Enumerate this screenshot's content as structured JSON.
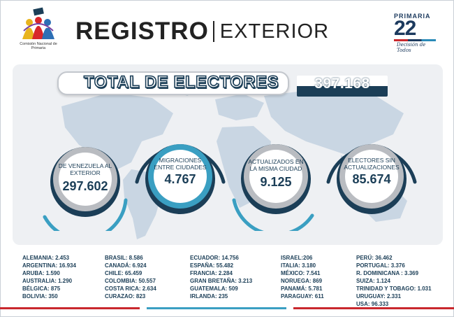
{
  "header": {
    "org_name": "Comisión Nacional de Primaria",
    "title_bold": "REGISTRO",
    "title_light": "EXTERIOR",
    "brand_top": "PRIMARIA",
    "brand_number": "22",
    "brand_tagline": "Decisión de Todos"
  },
  "total": {
    "label": "TOTAL DE ELECTORES",
    "value": "397.168"
  },
  "stats": [
    {
      "label": "DE VENEZUELA AL EXTERIOR",
      "value": "297.602"
    },
    {
      "label": "MIGRACIONES ENTRE CIUDADES",
      "value": "4.767"
    },
    {
      "label": "ACTUALIZADOS EN LA MISMA CIUDAD",
      "value": "9.125"
    },
    {
      "label": "ELECTORES SIN ACTUALIZACIONES",
      "value": "85.674"
    }
  ],
  "countries": [
    [
      "ALEMANIA: 2.453",
      "ARGENTINA: 16.934",
      "ARUBA: 1.590",
      "AUSTRALIA: 1.290",
      "BÉLGICA: 875",
      "BOLIVIA: 350"
    ],
    [
      "BRASIL: 8.586",
      "CANADÁ: 6.924",
      "CHILE: 65.459",
      "COLOMBIA: 50.557",
      "COSTA RICA: 2.634",
      "CURAZAO: 823"
    ],
    [
      "ECUADOR: 14.756",
      "ESPAÑA: 55.482",
      "FRANCIA: 2.284",
      "GRAN BRETAÑA: 3.213",
      "GUATEMALA: 509",
      "IRLANDA: 235"
    ],
    [
      "ISRAEL:206",
      "ITALIA: 3.180",
      "MÉXICO: 7.541",
      "NORUEGA: 869",
      "PANAMÁ: 5.781",
      "PARAGUAY: 611"
    ],
    [
      "PERÚ: 36.462",
      "PORTUGAL: 3.376",
      "R. DOMINICANA : 3.369",
      "SUIZA: 1.124",
      "TRINIDAD Y TOBAGO: 1.031",
      "URUGUAY: 2.331",
      "USA: 96.333"
    ]
  ],
  "colors": {
    "navy": "#1b3e57",
    "teal": "#3a9fc2",
    "panel": "#eef0f3",
    "map": "#c9d6e3"
  }
}
